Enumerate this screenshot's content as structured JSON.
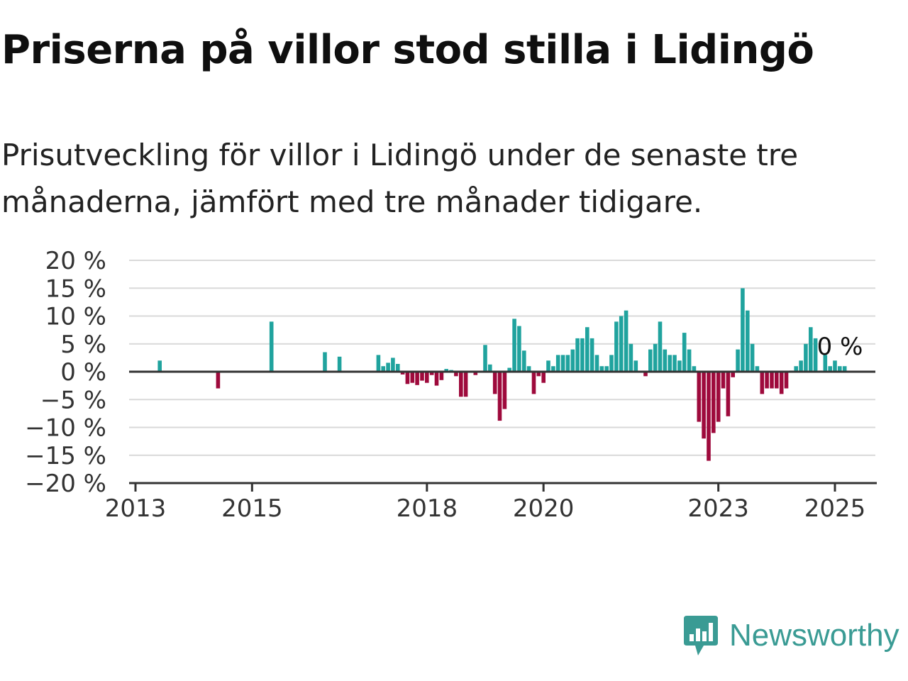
{
  "header": {
    "title": "Priserna på villor stod stilla i Lidingö",
    "subtitle": "Prisutveckling för villor i Lidingö under de senaste tre månaderna, jämfört med tre månader tidigare."
  },
  "brand": {
    "name": "Newsworthy",
    "icon": "newsworthy-logo-icon",
    "color": "#3a9b94"
  },
  "colors": {
    "positive": "#20a39e",
    "negative": "#9e0a3c",
    "grid": "#d9d9d9",
    "axis": "#333333"
  },
  "chart_data": {
    "type": "bar",
    "title": "",
    "xlabel": "",
    "ylabel": "",
    "ylim": [
      -20,
      20
    ],
    "yticks": [
      20,
      15,
      10,
      5,
      0,
      -5,
      -10,
      -15,
      -20
    ],
    "ytick_labels": [
      "20 %",
      "15 %",
      "10 %",
      "5 %",
      "0 %",
      "−5 %",
      "−10 %",
      "−15 %",
      "−20 %"
    ],
    "xlim": [
      "2013-01",
      "2025-06"
    ],
    "xticks": [
      "2013",
      "2015",
      "2018",
      "2020",
      "2023",
      "2025"
    ],
    "grid": true,
    "last_value_label": "0 %",
    "bars": [
      {
        "month": "2013-06",
        "value": 2
      },
      {
        "month": "2014-06",
        "value": -3
      },
      {
        "month": "2015-05",
        "value": 9
      },
      {
        "month": "2016-04",
        "value": 3.5
      },
      {
        "month": "2016-07",
        "value": 2.7
      },
      {
        "month": "2017-03",
        "value": 3
      },
      {
        "month": "2017-04",
        "value": 1
      },
      {
        "month": "2017-05",
        "value": 1.6
      },
      {
        "month": "2017-06",
        "value": 2.5
      },
      {
        "month": "2017-07",
        "value": 1.4
      },
      {
        "month": "2017-08",
        "value": -0.5
      },
      {
        "month": "2017-09",
        "value": -2.2
      },
      {
        "month": "2017-10",
        "value": -2
      },
      {
        "month": "2017-11",
        "value": -2.4
      },
      {
        "month": "2017-12",
        "value": -1.6
      },
      {
        "month": "2018-01",
        "value": -2
      },
      {
        "month": "2018-02",
        "value": -0.6
      },
      {
        "month": "2018-03",
        "value": -2.5
      },
      {
        "month": "2018-04",
        "value": -1.5
      },
      {
        "month": "2018-05",
        "value": 0.5
      },
      {
        "month": "2018-06",
        "value": 0.3
      },
      {
        "month": "2018-07",
        "value": -0.8
      },
      {
        "month": "2018-08",
        "value": -4.5
      },
      {
        "month": "2018-09",
        "value": -4.5
      },
      {
        "month": "2018-11",
        "value": -0.6
      },
      {
        "month": "2019-01",
        "value": 4.8
      },
      {
        "month": "2019-02",
        "value": 1.3
      },
      {
        "month": "2019-03",
        "value": -4
      },
      {
        "month": "2019-04",
        "value": -8.8
      },
      {
        "month": "2019-05",
        "value": -6.7
      },
      {
        "month": "2019-06",
        "value": 0.7
      },
      {
        "month": "2019-07",
        "value": 9.5
      },
      {
        "month": "2019-08",
        "value": 8.2
      },
      {
        "month": "2019-09",
        "value": 3.8
      },
      {
        "month": "2019-10",
        "value": 1
      },
      {
        "month": "2019-11",
        "value": -4
      },
      {
        "month": "2019-12",
        "value": -0.8
      },
      {
        "month": "2020-01",
        "value": -2
      },
      {
        "month": "2020-02",
        "value": 2
      },
      {
        "month": "2020-03",
        "value": 1
      },
      {
        "month": "2020-04",
        "value": 3
      },
      {
        "month": "2020-05",
        "value": 3
      },
      {
        "month": "2020-06",
        "value": 3
      },
      {
        "month": "2020-07",
        "value": 4
      },
      {
        "month": "2020-08",
        "value": 6
      },
      {
        "month": "2020-09",
        "value": 6
      },
      {
        "month": "2020-10",
        "value": 8
      },
      {
        "month": "2020-11",
        "value": 6
      },
      {
        "month": "2020-12",
        "value": 3
      },
      {
        "month": "2021-01",
        "value": 1
      },
      {
        "month": "2021-02",
        "value": 1
      },
      {
        "month": "2021-03",
        "value": 3
      },
      {
        "month": "2021-04",
        "value": 9
      },
      {
        "month": "2021-05",
        "value": 10
      },
      {
        "month": "2021-06",
        "value": 11
      },
      {
        "month": "2021-07",
        "value": 5
      },
      {
        "month": "2021-08",
        "value": 2
      },
      {
        "month": "2021-10",
        "value": -0.8
      },
      {
        "month": "2021-11",
        "value": 4
      },
      {
        "month": "2021-12",
        "value": 5
      },
      {
        "month": "2022-01",
        "value": 9
      },
      {
        "month": "2022-02",
        "value": 4
      },
      {
        "month": "2022-03",
        "value": 3
      },
      {
        "month": "2022-04",
        "value": 3
      },
      {
        "month": "2022-05",
        "value": 2
      },
      {
        "month": "2022-06",
        "value": 7
      },
      {
        "month": "2022-07",
        "value": 4
      },
      {
        "month": "2022-08",
        "value": 1
      },
      {
        "month": "2022-09",
        "value": -9
      },
      {
        "month": "2022-10",
        "value": -12
      },
      {
        "month": "2022-11",
        "value": -16
      },
      {
        "month": "2022-12",
        "value": -11
      },
      {
        "month": "2023-01",
        "value": -9
      },
      {
        "month": "2023-02",
        "value": -3
      },
      {
        "month": "2023-03",
        "value": -8
      },
      {
        "month": "2023-04",
        "value": -1
      },
      {
        "month": "2023-05",
        "value": 4
      },
      {
        "month": "2023-06",
        "value": 15
      },
      {
        "month": "2023-07",
        "value": 11
      },
      {
        "month": "2023-08",
        "value": 5
      },
      {
        "month": "2023-09",
        "value": 1
      },
      {
        "month": "2023-10",
        "value": -4
      },
      {
        "month": "2023-11",
        "value": -3
      },
      {
        "month": "2023-12",
        "value": -3
      },
      {
        "month": "2024-01",
        "value": -3
      },
      {
        "month": "2024-02",
        "value": -4
      },
      {
        "month": "2024-03",
        "value": -3
      },
      {
        "month": "2024-04",
        "value": 0.2
      },
      {
        "month": "2024-05",
        "value": 1
      },
      {
        "month": "2024-06",
        "value": 2
      },
      {
        "month": "2024-07",
        "value": 5
      },
      {
        "month": "2024-08",
        "value": 8
      },
      {
        "month": "2024-09",
        "value": 6
      },
      {
        "month": "2024-10",
        "value": 0.2
      },
      {
        "month": "2024-11",
        "value": 3
      },
      {
        "month": "2024-12",
        "value": 1
      },
      {
        "month": "2025-01",
        "value": 2
      },
      {
        "month": "2025-02",
        "value": 1
      },
      {
        "month": "2025-03",
        "value": 1
      }
    ]
  }
}
